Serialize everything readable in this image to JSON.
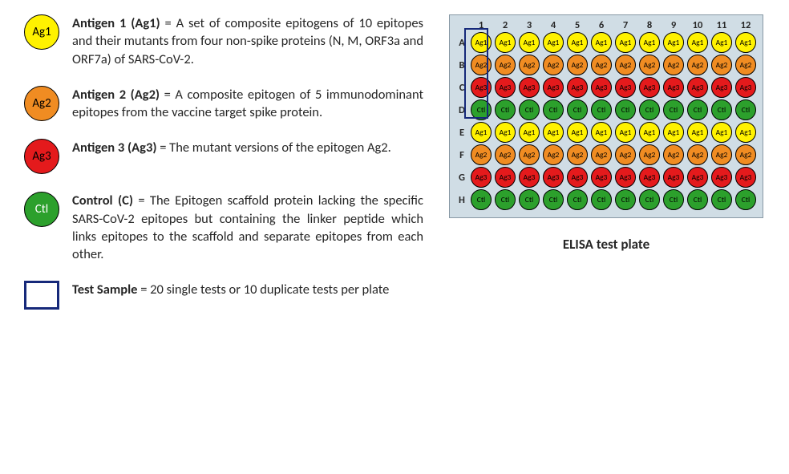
{
  "legend": [
    {
      "key": "ag1",
      "icon_type": "circle",
      "fill": "#fff200",
      "label": "Ag1",
      "title": "Antigen 1 (Ag1)",
      "desc": " = A set of composite epitogens of 10 epitopes and their mutants from four non-spike proteins (N, M, ORF3a and ORF7a) of SARS-CoV-2."
    },
    {
      "key": "ag2",
      "icon_type": "circle",
      "fill": "#f08c22",
      "label": "Ag2",
      "title": "Antigen 2 (Ag2)",
      "desc": " = A composite epitogen of 5 immunodominant epitopes from the vaccine target spike protein."
    },
    {
      "key": "ag3",
      "icon_type": "circle",
      "fill": "#e41a1c",
      "label": "Ag3",
      "title": "Antigen 3 (Ag3)",
      "desc": " = The mutant versions of the epitogen Ag2."
    },
    {
      "key": "ctl",
      "icon_type": "circle",
      "fill": "#2ca02c",
      "label": "Ctl",
      "label_color": "#ffffff",
      "title": "Control (C)",
      "desc": " = The Epitogen scaffold protein lacking the specific SARS-CoV-2 epitopes but containing the linker peptide which links epitopes to the scaffold and separate epitopes from each other."
    },
    {
      "key": "test-sample",
      "icon_type": "square",
      "border": "#16297a",
      "title": "Test Sample",
      "desc": " = 20 single tests or 10 duplicate tests per plate"
    }
  ],
  "plate": {
    "caption": "ELISA test plate",
    "background": "#d0dde5",
    "columns": [
      "1",
      "2",
      "3",
      "4",
      "5",
      "6",
      "7",
      "8",
      "9",
      "10",
      "11",
      "12"
    ],
    "row_labels": [
      "A",
      "B",
      "C",
      "D",
      "E",
      "F",
      "G",
      "H"
    ],
    "well_colors": {
      "Ag1": "#fff200",
      "Ag2": "#f08c22",
      "Ag3": "#e41a1c",
      "Ctl": "#2ca02c"
    },
    "rows": [
      [
        "Ag1",
        "Ag1",
        "Ag1",
        "Ag1",
        "Ag1",
        "Ag1",
        "Ag1",
        "Ag1",
        "Ag1",
        "Ag1",
        "Ag1",
        "Ag1"
      ],
      [
        "Ag2",
        "Ag2",
        "Ag2",
        "Ag2",
        "Ag2",
        "Ag2",
        "Ag2",
        "Ag2",
        "Ag2",
        "Ag2",
        "Ag2",
        "Ag2"
      ],
      [
        "Ag3",
        "Ag3",
        "Ag3",
        "Ag3",
        "Ag3",
        "Ag3",
        "Ag3",
        "Ag3",
        "Ag3",
        "Ag3",
        "Ag3",
        "Ag3"
      ],
      [
        "Ctl",
        "Ctl",
        "Ctl",
        "Ctl",
        "Ctl",
        "Ctl",
        "Ctl",
        "Ctl",
        "Ctl",
        "Ctl",
        "Ctl",
        "Ctl"
      ],
      [
        "Ag1",
        "Ag1",
        "Ag1",
        "Ag1",
        "Ag1",
        "Ag1",
        "Ag1",
        "Ag1",
        "Ag1",
        "Ag1",
        "Ag1",
        "Ag1"
      ],
      [
        "Ag2",
        "Ag2",
        "Ag2",
        "Ag2",
        "Ag2",
        "Ag2",
        "Ag2",
        "Ag2",
        "Ag2",
        "Ag2",
        "Ag2",
        "Ag2"
      ],
      [
        "Ag3",
        "Ag3",
        "Ag3",
        "Ag3",
        "Ag3",
        "Ag3",
        "Ag3",
        "Ag3",
        "Ag3",
        "Ag3",
        "Ag3",
        "Ag3"
      ],
      [
        "Ctl",
        "Ctl",
        "Ctl",
        "Ctl",
        "Ctl",
        "Ctl",
        "Ctl",
        "Ctl",
        "Ctl",
        "Ctl",
        "Ctl",
        "Ctl"
      ]
    ],
    "highlight": {
      "col": 1,
      "row_start": "A",
      "row_end": "D",
      "border": "#16297a"
    }
  }
}
